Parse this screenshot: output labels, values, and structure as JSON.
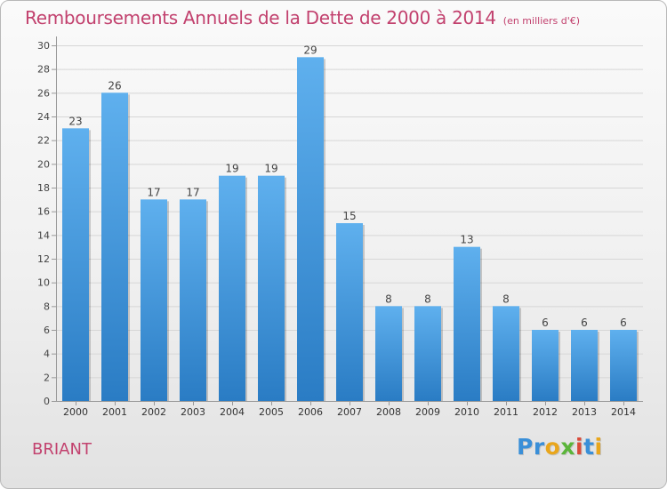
{
  "header": {
    "title": "Remboursements Annuels de la Dette de 2000 à 2014",
    "subtitle": "(en milliers d'€)"
  },
  "footer": {
    "commune": "BRIANT",
    "logo_text": "Proxiti",
    "logo_colors": [
      "#3a8fd8",
      "#3a8fd8",
      "#e9a61c",
      "#5bb53a",
      "#d94b3a",
      "#3a8fd8",
      "#e9a61c"
    ]
  },
  "colors": {
    "title": "#c2416e",
    "bar_top": "#5fb0ee",
    "bar_bottom": "#2a7cc4",
    "grid": "#d6d6d6",
    "axis": "#999999"
  },
  "chart_data": {
    "type": "bar",
    "categories": [
      "2000",
      "2001",
      "2002",
      "2003",
      "2004",
      "2005",
      "2006",
      "2007",
      "2008",
      "2009",
      "2010",
      "2011",
      "2012",
      "2013",
      "2014"
    ],
    "values": [
      23,
      26,
      17,
      17,
      19,
      19,
      29,
      15,
      8,
      8,
      13,
      8,
      6,
      6,
      6
    ],
    "title": "Remboursements Annuels de la Dette de 2000 à 2014",
    "ylim": [
      0,
      30
    ],
    "yticks": [
      0,
      2,
      4,
      6,
      8,
      10,
      12,
      14,
      16,
      18,
      20,
      22,
      24,
      26,
      28,
      30
    ],
    "grid": true,
    "data_labels": true
  }
}
